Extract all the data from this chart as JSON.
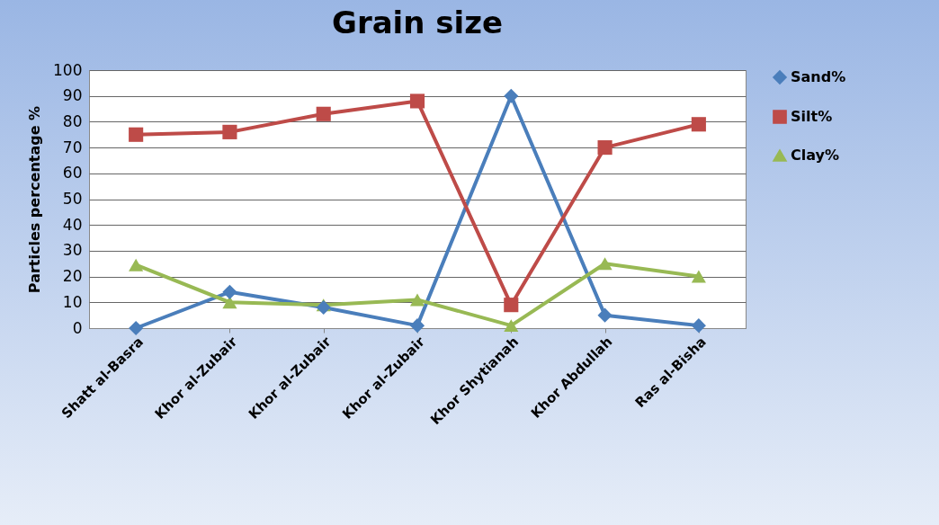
{
  "chart_data": {
    "type": "line",
    "title": "Grain size",
    "ylabel": "Particles percentage %",
    "categories": [
      "Shatt al-Basra",
      "Khor al-Zubair",
      "Khor al-Zubair",
      "Khor al-Zubair",
      "Khor Shytianah",
      "Khor Abdullah",
      "Ras al-Bisha"
    ],
    "series": [
      {
        "name": "Sand%",
        "color": "#4a7ebb",
        "marker": "diamond",
        "values": [
          0,
          14,
          8,
          1,
          90,
          5,
          1
        ]
      },
      {
        "name": "Silt%",
        "color": "#be4b48",
        "marker": "square",
        "values": [
          75,
          76,
          83,
          88,
          9,
          70,
          79
        ]
      },
      {
        "name": "Clay%",
        "color": "#98b954",
        "marker": "triangle",
        "values": [
          24.5,
          10,
          9,
          11,
          1,
          25,
          20
        ]
      }
    ],
    "ylim": [
      0,
      100
    ],
    "yticks": [
      0,
      10,
      20,
      30,
      40,
      50,
      60,
      70,
      80,
      90,
      100
    ],
    "grid": "y",
    "legend": "right"
  }
}
